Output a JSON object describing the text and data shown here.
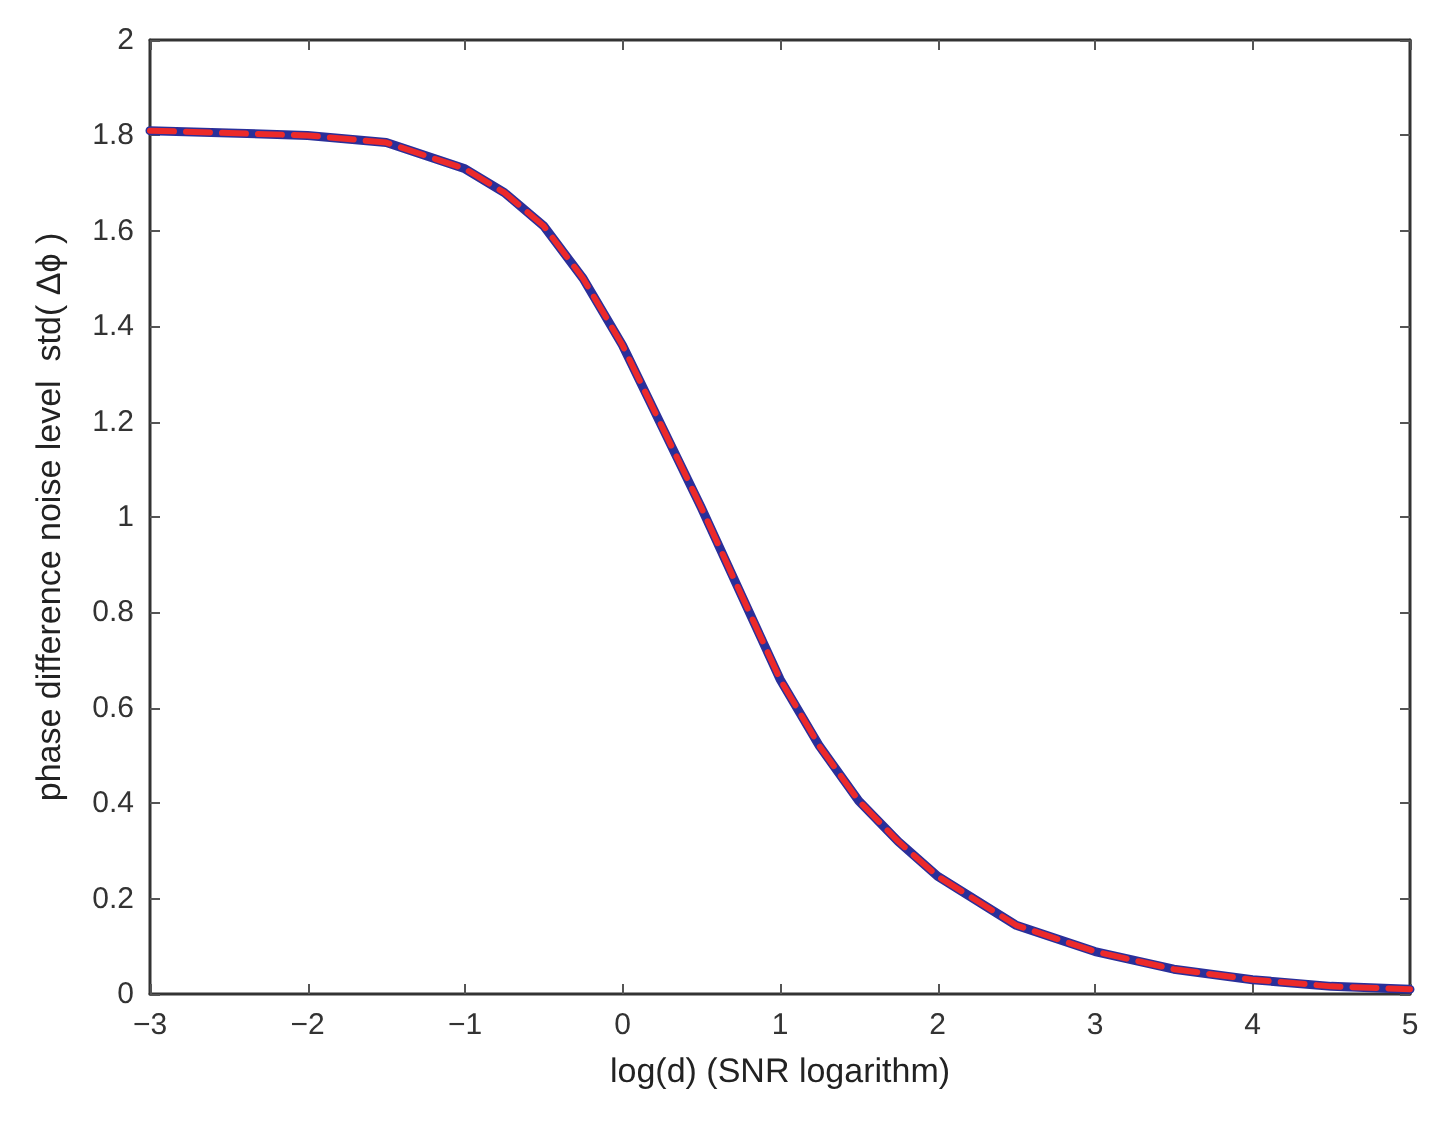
{
  "chart_data": {
    "type": "line",
    "xlabel": "log(d) (SNR logarithm)",
    "ylabel": "phase difference noise level  std( Δϕ )",
    "x": [
      -3,
      -2.5,
      -2,
      -1.5,
      -1,
      -0.75,
      -0.5,
      -0.25,
      0,
      0.25,
      0.5,
      0.75,
      1,
      1.25,
      1.5,
      1.75,
      2,
      2.5,
      3,
      3.5,
      4,
      4.5,
      5
    ],
    "series": [
      {
        "color": "#2a2f9a",
        "line_style": "solid",
        "values": [
          1.81,
          1.805,
          1.8,
          1.785,
          1.73,
          1.68,
          1.61,
          1.5,
          1.36,
          1.19,
          1.02,
          0.84,
          0.66,
          0.52,
          0.405,
          0.32,
          0.247,
          0.144,
          0.089,
          0.052,
          0.03,
          0.016,
          0.01
        ]
      },
      {
        "color": "#ec2a2a",
        "line_style": "dashed",
        "values": [
          1.81,
          1.805,
          1.8,
          1.785,
          1.73,
          1.68,
          1.61,
          1.5,
          1.36,
          1.19,
          1.02,
          0.84,
          0.66,
          0.52,
          0.405,
          0.32,
          0.247,
          0.144,
          0.089,
          0.052,
          0.03,
          0.016,
          0.01
        ]
      }
    ],
    "xlim": [
      -3,
      5
    ],
    "xticks": [
      -3,
      -2,
      -1,
      0,
      1,
      2,
      3,
      4,
      5
    ],
    "ylim": [
      0,
      2
    ],
    "yticks": [
      0,
      0.2,
      0.4,
      0.6,
      0.8,
      1,
      1.2,
      1.4,
      1.6,
      1.8,
      2
    ],
    "grid": false,
    "marker": "none"
  }
}
